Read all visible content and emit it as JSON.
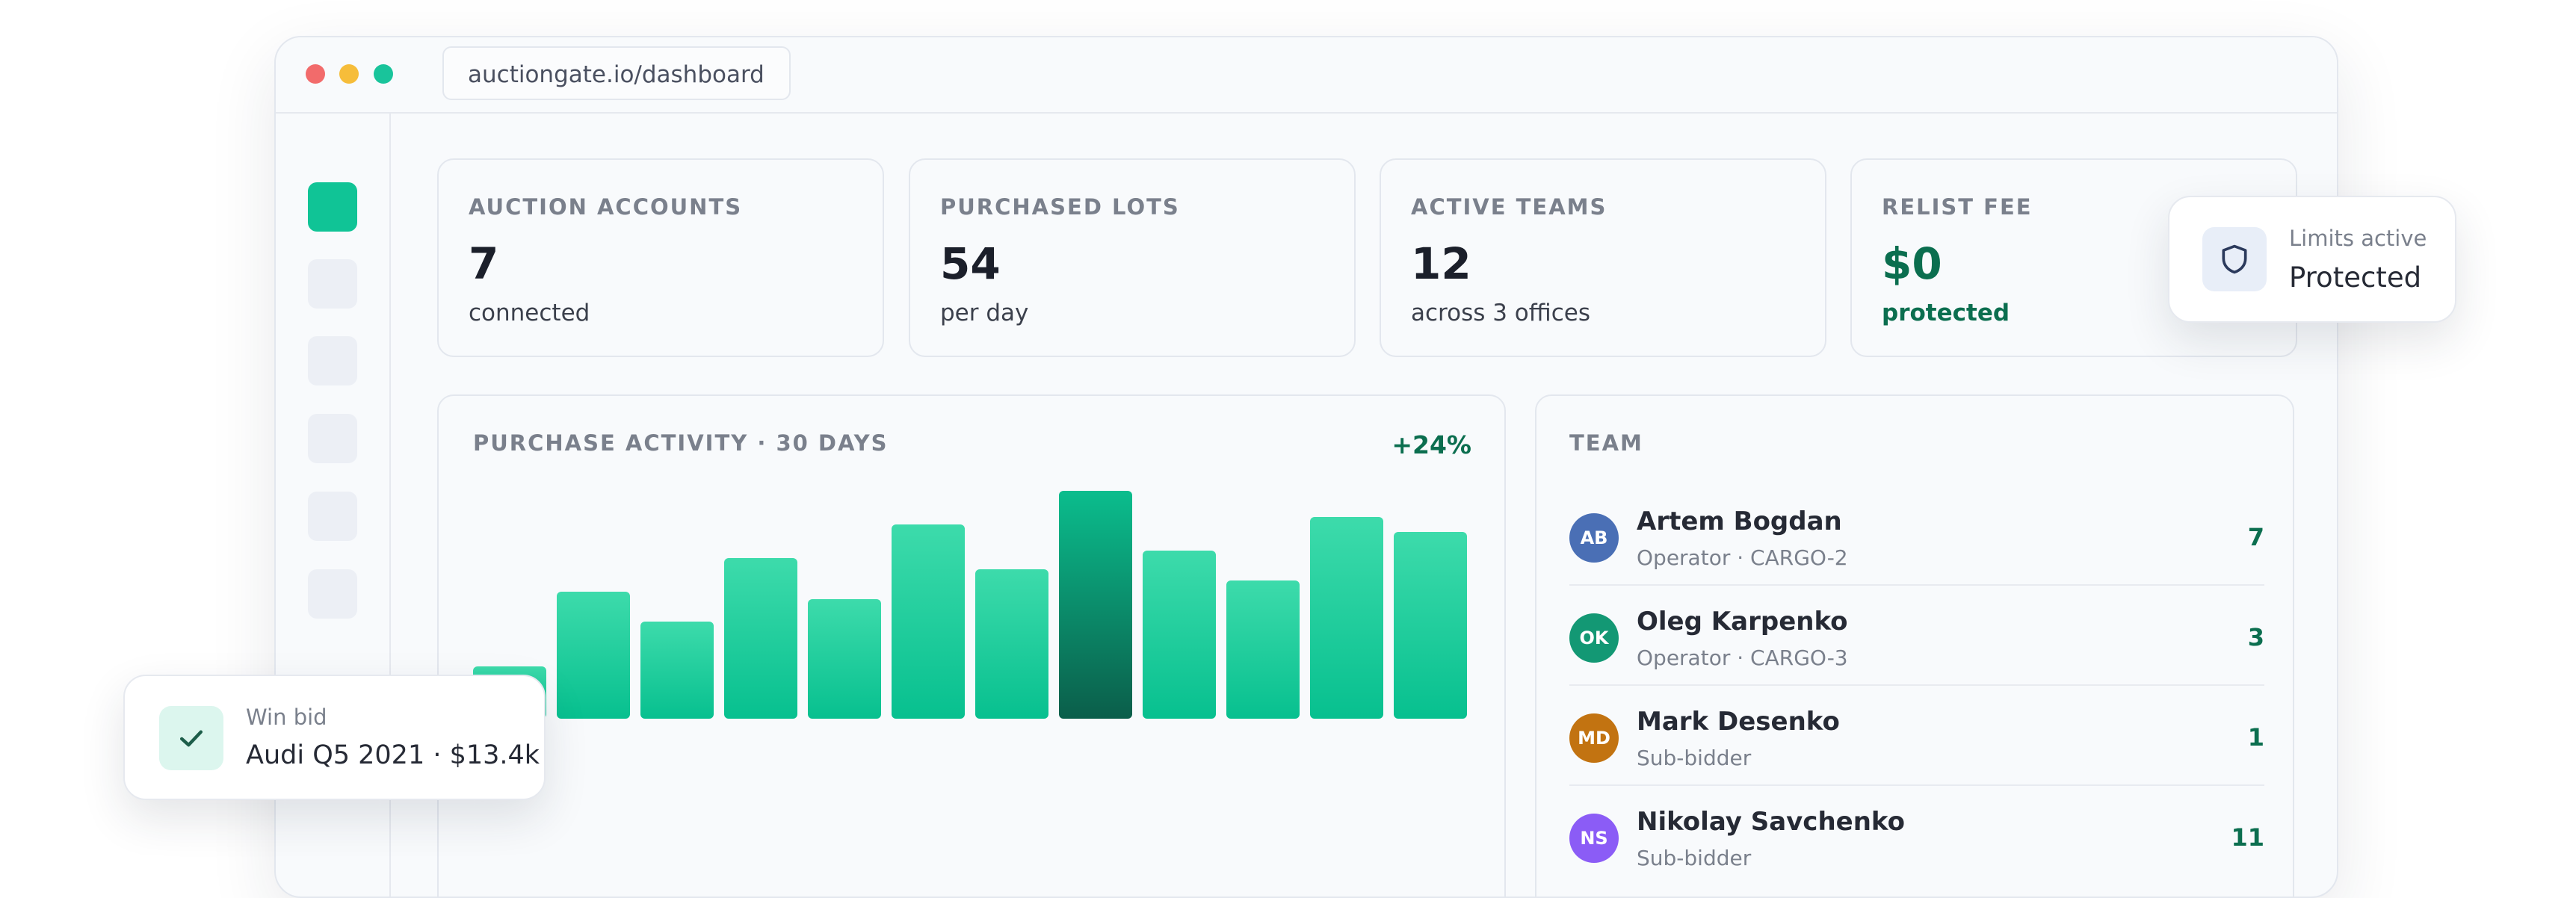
{
  "browser": {
    "url": "auctiongate.io/dashboard"
  },
  "stats": [
    {
      "label": "AUCTION ACCOUNTS",
      "value": "7",
      "sub": "connected"
    },
    {
      "label": "PURCHASED LOTS",
      "value": "54",
      "sub": "per day"
    },
    {
      "label": "ACTIVE TEAMS",
      "value": "12",
      "sub": "across 3 offices"
    },
    {
      "label": "RELIST FEE",
      "value": "$0",
      "sub": "protected"
    }
  ],
  "chart": {
    "title": "PURCHASE ACTIVITY · 30 DAYS",
    "change": "+24%"
  },
  "chart_data": {
    "type": "bar",
    "values": [
      14,
      34,
      26,
      43,
      32,
      52,
      40,
      61,
      45,
      37,
      54,
      50
    ],
    "highlight_index": 7,
    "colors": {
      "bar_top": "#3ddbab",
      "bar_bottom": "#07c08f",
      "highlight_top": "#0bbd8d",
      "highlight_bottom": "#0b5e4a"
    }
  },
  "team": {
    "title": "TEAM",
    "members": [
      {
        "initials": "AB",
        "name": "Artem Bogdan",
        "role": "Operator · CARGO-2",
        "count": "7",
        "color": "#4a6fb5"
      },
      {
        "initials": "OK",
        "name": "Oleg Karpenko",
        "role": "Operator · CARGO-3",
        "count": "3",
        "color": "#139874"
      },
      {
        "initials": "MD",
        "name": "Mark Desenko",
        "role": "Sub-bidder",
        "count": "1",
        "color": "#c27311"
      },
      {
        "initials": "NS",
        "name": "Nikolay Savchenko",
        "role": "Sub-bidder",
        "count": "11",
        "color": "#8b5cf6"
      }
    ]
  },
  "notifications": {
    "limits": {
      "title": "Limits active",
      "status": "Protected",
      "icon": "shield-icon"
    },
    "win": {
      "title": "Win bid",
      "detail": "Audi Q5 2021 · $13.4k",
      "icon": "check-icon"
    }
  }
}
